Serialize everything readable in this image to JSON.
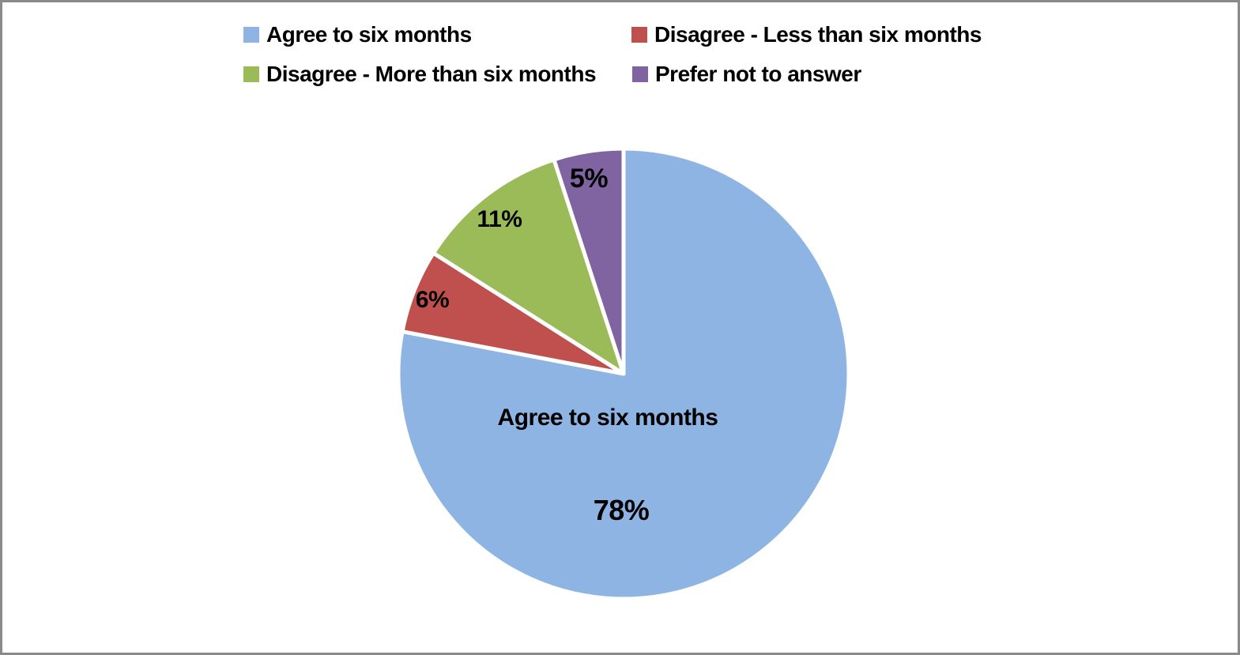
{
  "page": {
    "background": "#ffffff",
    "border_color": "#8a8a8a"
  },
  "chart_data": {
    "type": "pie",
    "title": "",
    "categories": [
      "Agree to six months",
      "Disagree - Less than six months",
      "Disagree - More than six months",
      "Prefer not to answer"
    ],
    "values": [
      78,
      6,
      11,
      5
    ],
    "unit": "%",
    "colors": [
      "#8DB4E2",
      "#C0504D",
      "#9BBB59",
      "#8064A2"
    ],
    "start_angle_deg": 0,
    "direction": "clockwise",
    "slice_border_color": "#ffffff",
    "legend_position": "top",
    "data_labels": [
      "78%",
      "6%",
      "11%",
      "5%"
    ],
    "inner_category_label": "Agree to six months"
  },
  "legend": {
    "items": [
      {
        "label": "Agree to six months",
        "color": "#8DB4E2"
      },
      {
        "label": "Disagree - Less than six months",
        "color": "#C0504D"
      },
      {
        "label": "Disagree - More than six months",
        "color": "#9BBB59"
      },
      {
        "label": "Prefer not to answer",
        "color": "#8064A2"
      }
    ]
  },
  "labels": {
    "agree_category": "Agree to six months",
    "agree_value": "78%",
    "less_value": "6%",
    "more_value": "11%",
    "prefer_value": "5%"
  }
}
